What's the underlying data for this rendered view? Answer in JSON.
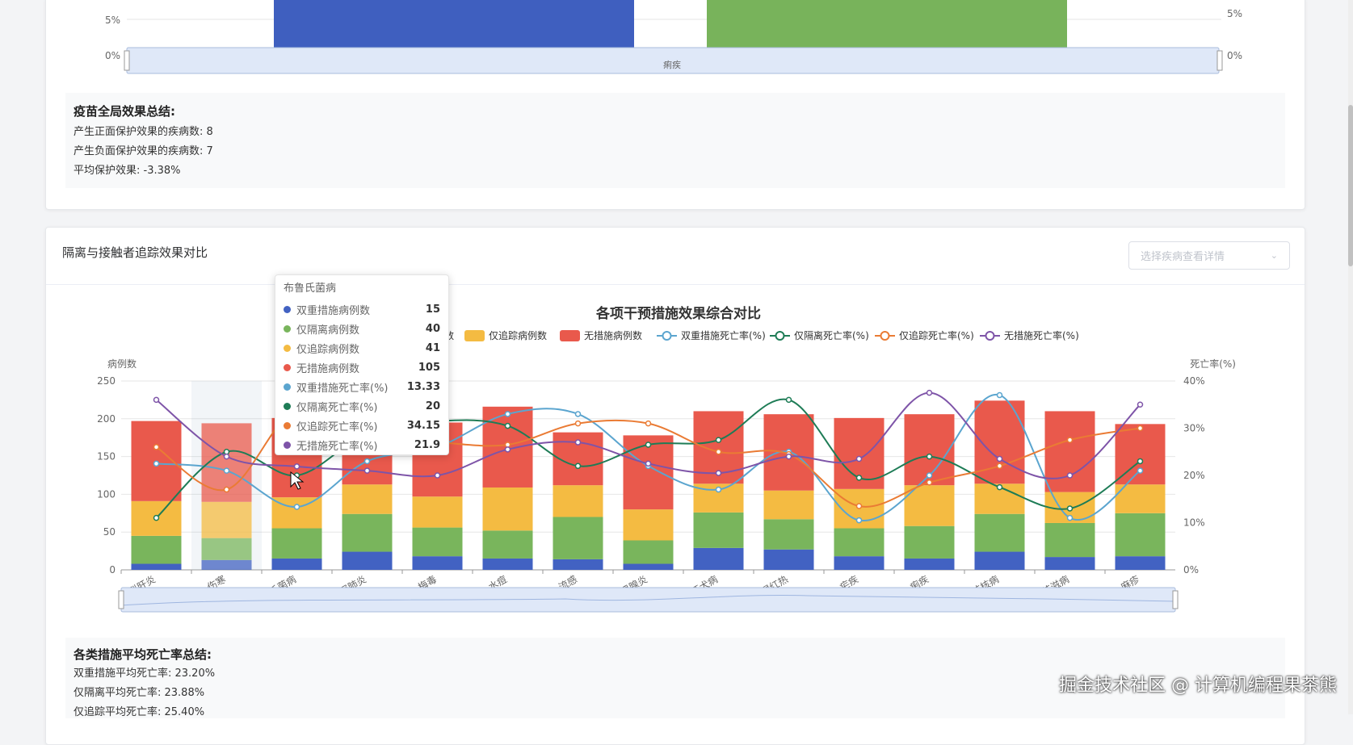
{
  "top_chart": {
    "left_ticks": [
      "5%",
      "0%"
    ],
    "right_ticks": [
      "5%",
      "0%"
    ],
    "zoom_label": "痢疾",
    "bars": [
      {
        "color": "#3f5fbf",
        "value_pct": 100
      },
      {
        "color": "#78b35b",
        "value_pct": 100
      }
    ]
  },
  "vaccine_summary": {
    "title": "疫苗全局效果总结:",
    "lines": [
      "产生正面保护效果的疾病数: 8",
      "产生负面保护效果的疾病数: 7",
      "平均保护效果: -3.38%"
    ]
  },
  "panel": {
    "title": "隔离与接触者追踪效果对比",
    "select_placeholder": "选择疾病查看详情"
  },
  "chart_data": {
    "type": "bar",
    "title": "各项干预措施效果综合对比",
    "ylabel": "病例数",
    "y2label": "死亡率(%)",
    "ylim": [
      0,
      250
    ],
    "yticks": [
      "250",
      "200",
      "150",
      "100",
      "50",
      "0"
    ],
    "y2lim": [
      0,
      40
    ],
    "y2ticks": [
      "40%",
      "30%",
      "20%",
      "10%",
      "0%"
    ],
    "legend_visible": [
      "数",
      "仅追踪病例数",
      "无措施病例数",
      "双重措施死亡率(%)",
      "仅隔离死亡率(%)",
      "仅追踪死亡率(%)",
      "无措施死亡率(%)"
    ],
    "categories": [
      "乙型肝炎",
      "伤寒",
      "布鲁氏菌病",
      "新冠肺炎",
      "梅毒",
      "水痘",
      "流感",
      "流行性腮腺炎",
      "狂犬病",
      "猩红热",
      "疟疾",
      "痢疾",
      "结核病",
      "艾滋病",
      "麻疹"
    ],
    "stacked_series": [
      {
        "name": "双重措施病例数",
        "color": "#4262c2",
        "values": [
          8,
          13,
          15,
          24,
          18,
          15,
          14,
          8,
          29,
          27,
          18,
          15,
          24,
          17,
          18
        ]
      },
      {
        "name": "仅隔离病例数",
        "color": "#79b55c",
        "values": [
          37,
          29,
          40,
          50,
          38,
          37,
          56,
          31,
          47,
          40,
          37,
          43,
          50,
          45,
          57
        ]
      },
      {
        "name": "仅追踪病例数",
        "color": "#f4bb42",
        "values": [
          46,
          48,
          41,
          39,
          41,
          57,
          42,
          41,
          38,
          38,
          52,
          54,
          40,
          41,
          38
        ]
      },
      {
        "name": "无措施病例数",
        "color": "#e9594c",
        "values": [
          106,
          104,
          105,
          63,
          98,
          107,
          70,
          98,
          96,
          101,
          94,
          94,
          110,
          107,
          80
        ]
      }
    ],
    "line_series": [
      {
        "name": "双重措施死亡率(%)",
        "color": "#5ba5cf",
        "values": [
          22.5,
          21,
          13.33,
          23,
          26,
          33,
          33,
          22,
          17,
          25,
          10.5,
          20,
          37,
          11,
          21
        ]
      },
      {
        "name": "仅隔离死亡率(%)",
        "color": "#1e7c56",
        "values": [
          11,
          25,
          20,
          29,
          31.5,
          30.5,
          22,
          26.5,
          27.5,
          36,
          19.5,
          24,
          17.5,
          13,
          23
        ]
      },
      {
        "name": "仅追踪死亡率(%)",
        "color": "#ea7b34",
        "values": [
          26,
          17,
          34.15,
          28,
          27,
          26.5,
          31,
          31,
          25,
          24.5,
          13.5,
          18.5,
          22,
          27.5,
          30
        ]
      },
      {
        "name": "无措施死亡率(%)",
        "color": "#7e54a8",
        "values": [
          36,
          24,
          21.9,
          21,
          20,
          25.5,
          27,
          22.5,
          20.5,
          24,
          23.5,
          37.5,
          23.5,
          20,
          35
        ]
      }
    ]
  },
  "tooltip": {
    "title": "布鲁氏菌病",
    "rows": [
      {
        "name": "双重措施病例数",
        "value": "15",
        "color": "#4262c2"
      },
      {
        "name": "仅隔离病例数",
        "value": "40",
        "color": "#79b55c"
      },
      {
        "name": "仅追踪病例数",
        "value": "41",
        "color": "#f4bb42"
      },
      {
        "name": "无措施病例数",
        "value": "105",
        "color": "#e9594c"
      },
      {
        "name": "双重措施死亡率(%)",
        "value": "13.33",
        "color": "#5ba5cf"
      },
      {
        "name": "仅隔离死亡率(%)",
        "value": "20",
        "color": "#1e7c56"
      },
      {
        "name": "仅追踪死亡率(%)",
        "value": "34.15",
        "color": "#ea7b34"
      },
      {
        "name": "无措施死亡率(%)",
        "value": "21.9",
        "color": "#7e54a8"
      }
    ]
  },
  "mortality_summary": {
    "title": "各类措施平均死亡率总结:",
    "lines": [
      "双重措施平均死亡率: 23.20%",
      "仅隔离平均死亡率: 23.88%",
      "仅追踪平均死亡率: 25.40%"
    ]
  },
  "watermark": "掘金技术社区 @ 计算机编程果茶熊"
}
